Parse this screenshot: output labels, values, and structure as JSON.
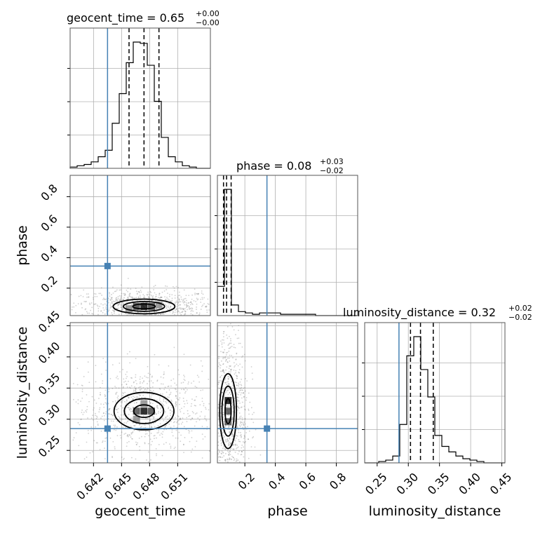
{
  "truth_color": "#4682b4",
  "chart_data": {
    "type": "corner",
    "parameters": [
      "geocent_time",
      "phase",
      "luminosity_distance"
    ],
    "truths": {
      "geocent_time": 0.6435,
      "phase": 0.345,
      "luminosity_distance": 0.285
    },
    "titles": {
      "geocent_time": {
        "label": "geocent_time = 0.65",
        "plus": "+0.00",
        "minus": "−0.00"
      },
      "phase": {
        "label": "phase = 0.08",
        "plus": "+0.03",
        "minus": "−0.02"
      },
      "luminosity_distance": {
        "label": "luminosity_distance = 0.32",
        "plus": "+0.02",
        "minus": "−0.02"
      }
    },
    "axes": {
      "geocent_time": {
        "range": [
          0.6395,
          0.6545
        ],
        "ticks": [
          0.642,
          0.645,
          0.648,
          0.651
        ],
        "tick_labels": [
          "0.642",
          "0.645",
          "0.648",
          "0.651"
        ]
      },
      "phase": {
        "range": [
          0.02,
          0.94
        ],
        "ticks": [
          0.2,
          0.4,
          0.6,
          0.8
        ],
        "tick_labels": [
          "0.2",
          "0.4",
          "0.6",
          "0.8"
        ]
      },
      "luminosity_distance": {
        "range": [
          0.23,
          0.455
        ],
        "ticks": [
          0.25,
          0.3,
          0.35,
          0.4,
          0.45
        ],
        "tick_labels": [
          "0.25",
          "0.30",
          "0.35",
          "0.40",
          "0.45"
        ]
      }
    },
    "histograms": {
      "geocent_time": {
        "bin_edges": [
          0.6395,
          0.64025,
          0.641,
          0.64175,
          0.6425,
          0.64325,
          0.644,
          0.64475,
          0.6455,
          0.64625,
          0.647,
          0.64775,
          0.6485,
          0.64925,
          0.65,
          0.65075,
          0.6515,
          0.65225,
          0.653,
          0.65375,
          0.6545
        ],
        "counts": [
          1,
          2,
          3,
          5,
          9,
          14,
          35,
          58,
          82,
          98,
          97,
          80,
          52,
          24,
          9,
          5,
          2,
          1,
          0,
          0
        ],
        "quantiles": [
          0.6458,
          0.6474,
          0.649
        ]
      },
      "phase": {
        "bin_edges": [
          0.02,
          0.066,
          0.112,
          0.158,
          0.204,
          0.25,
          0.296,
          0.342,
          0.388,
          0.434,
          0.48,
          0.526,
          0.572,
          0.618,
          0.664,
          0.71,
          0.756,
          0.802,
          0.848,
          0.894,
          0.94
        ],
        "counts": [
          22,
          95,
          8,
          3,
          2,
          1,
          2,
          2,
          2,
          1,
          1,
          1,
          1,
          1,
          0,
          0,
          0,
          0,
          0,
          0
        ],
        "quantiles": [
          0.06,
          0.08,
          0.11
        ]
      },
      "luminosity_distance": {
        "bin_edges": [
          0.23,
          0.24125,
          0.2525,
          0.26375,
          0.275,
          0.28625,
          0.2975,
          0.30875,
          0.32,
          0.33125,
          0.3425,
          0.35375,
          0.365,
          0.37625,
          0.3875,
          0.39875,
          0.41,
          0.42125,
          0.4325,
          0.44375,
          0.455
        ],
        "counts": [
          0,
          0,
          1,
          2,
          5,
          28,
          78,
          92,
          68,
          48,
          20,
          12,
          8,
          5,
          3,
          2,
          1,
          0,
          0,
          0
        ],
        "quantiles": [
          0.3035,
          0.3195,
          0.34
        ]
      }
    },
    "contours_2d": {
      "phase_vs_geocent_time": {
        "peak": [
          0.6474,
          0.08
        ],
        "levels": [
          [
            0.0012,
            0.016
          ],
          [
            0.0022,
            0.032
          ],
          [
            0.0033,
            0.048
          ]
        ],
        "density_cells": [
          [
            0.6466,
            0.08
          ],
          [
            0.6474,
            0.08
          ],
          [
            0.6482,
            0.08
          ],
          [
            0.6458,
            0.065
          ],
          [
            0.649,
            0.09
          ]
        ]
      },
      "luminosity_distance_vs_geocent_time": {
        "peak": [
          0.6474,
          0.313
        ],
        "levels": [
          [
            0.0011,
            0.01
          ],
          [
            0.0021,
            0.02
          ],
          [
            0.0032,
            0.03
          ]
        ],
        "density_cells": [
          [
            0.6466,
            0.313
          ],
          [
            0.6474,
            0.313
          ],
          [
            0.6482,
            0.313
          ],
          [
            0.6474,
            0.325
          ],
          [
            0.6466,
            0.3
          ]
        ]
      },
      "luminosity_distance_vs_phase": {
        "peak": [
          0.09,
          0.313
        ],
        "levels": [
          [
            0.02,
            0.02
          ],
          [
            0.04,
            0.04
          ],
          [
            0.055,
            0.06
          ]
        ],
        "density_cells": [
          [
            0.09,
            0.313
          ],
          [
            0.09,
            0.33
          ],
          [
            0.09,
            0.296
          ]
        ]
      }
    },
    "grid": true
  }
}
